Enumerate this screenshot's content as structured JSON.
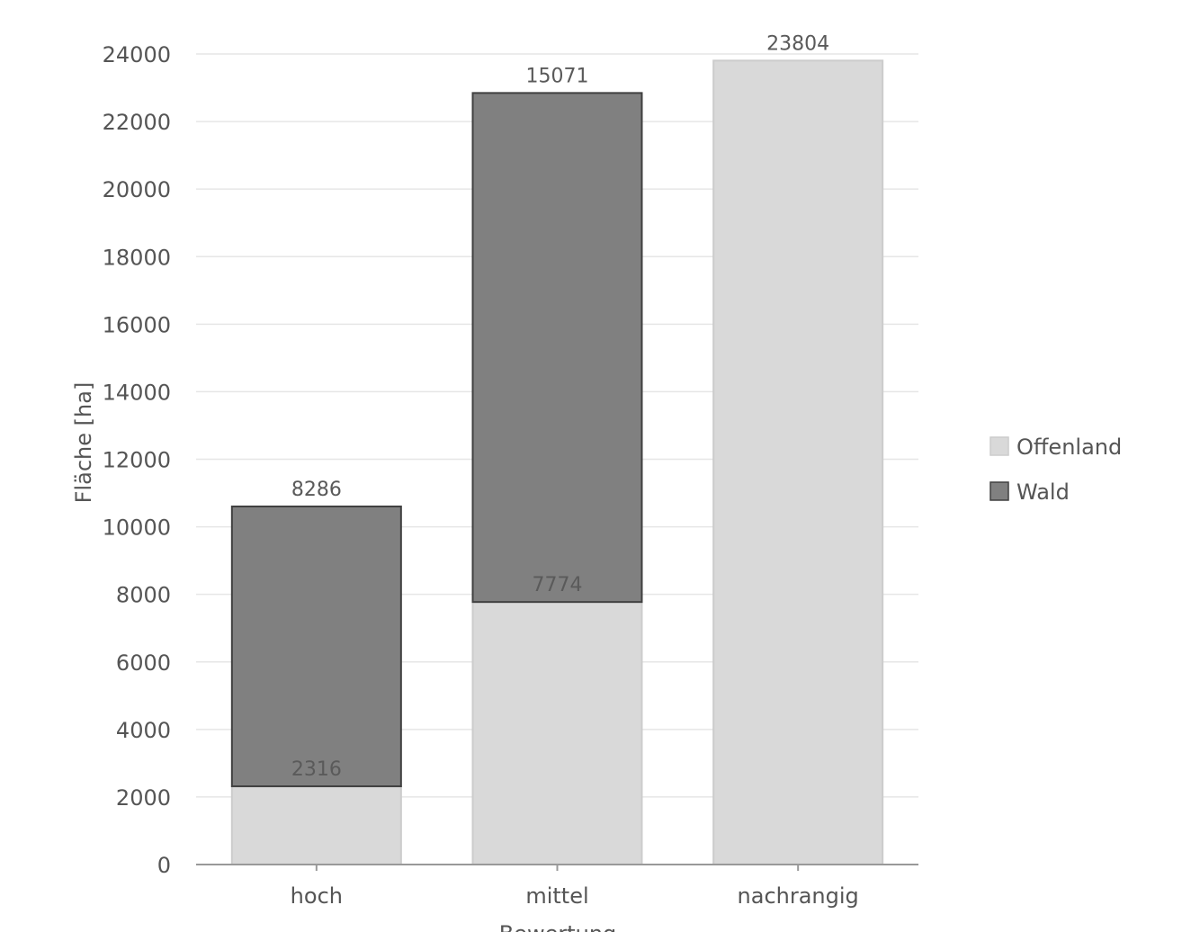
{
  "chart_data": {
    "type": "bar",
    "stacked": true,
    "categories": [
      "hoch",
      "mittel",
      "nachrangig"
    ],
    "series": [
      {
        "name": "Offenland",
        "values": [
          2316,
          7774,
          23804
        ],
        "color": "#d9d9d9",
        "border": "#cccccc"
      },
      {
        "name": "Wald",
        "values": [
          8286,
          15071,
          0
        ],
        "color": "#808080",
        "border": "#404040"
      }
    ],
    "xlabel": "Bewertung",
    "ylabel": "Fläche [ha]",
    "ylim": [
      0,
      24000
    ],
    "yticks": [
      0,
      2000,
      4000,
      6000,
      8000,
      10000,
      12000,
      14000,
      16000,
      18000,
      20000,
      22000,
      24000
    ],
    "grid": true,
    "legend_position": "right",
    "data_labels": [
      {
        "category": "hoch",
        "series": "Offenland",
        "text": "2316"
      },
      {
        "category": "hoch",
        "series": "Wald",
        "text": "8286"
      },
      {
        "category": "mittel",
        "series": "Offenland",
        "text": "7774"
      },
      {
        "category": "mittel",
        "series": "Wald",
        "text": "15071"
      },
      {
        "category": "nachrangig",
        "series": "Offenland",
        "text": "23804"
      }
    ]
  }
}
